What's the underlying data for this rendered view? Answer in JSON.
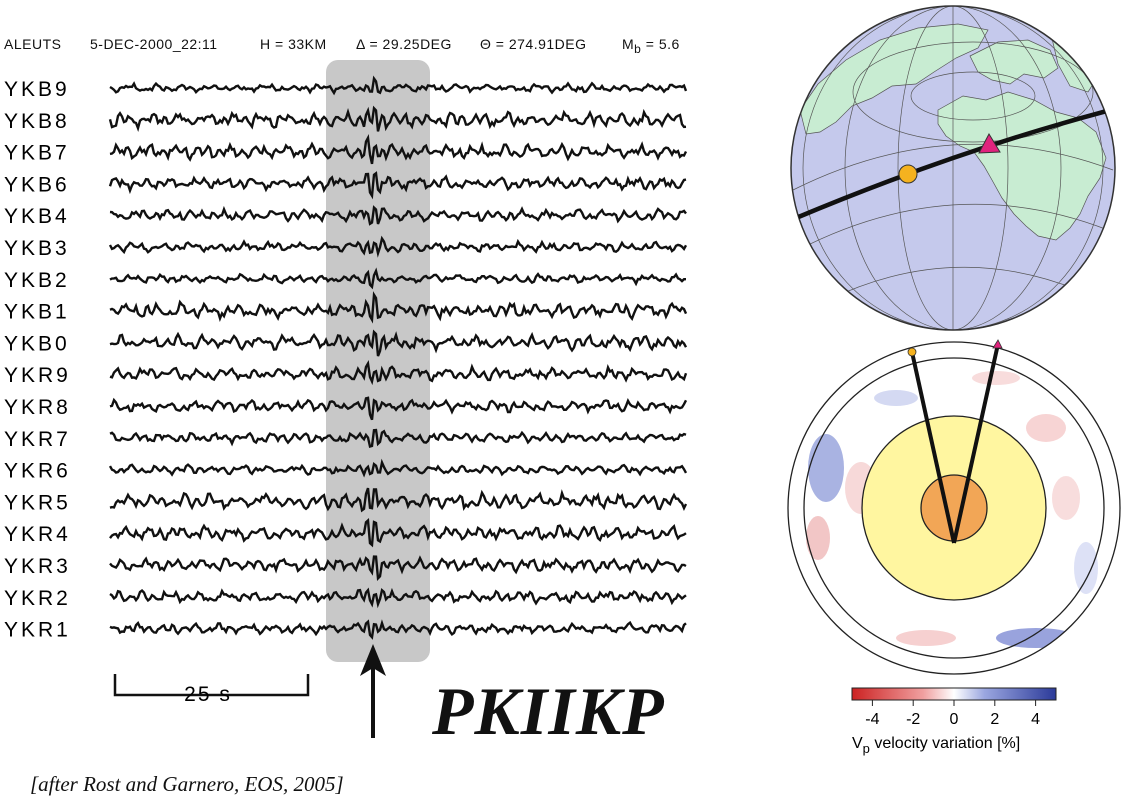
{
  "header": {
    "region": "ALEUTS",
    "date": "5-DEC-2000_22:11",
    "depth": "H = 33KM",
    "distance": "Δ = 29.25DEG",
    "azimuth": "Θ = 274.91DEG",
    "magnitude_label": "M",
    "magnitude_sub": "b",
    "magnitude_value": "= 5.6"
  },
  "stations": [
    "YKB9",
    "YKB8",
    "YKB7",
    "YKB6",
    "YKB4",
    "YKB3",
    "YKB2",
    "YKB1",
    "YKB0",
    "YKR9",
    "YKR8",
    "YKR7",
    "YKR6",
    "YKR5",
    "YKR4",
    "YKR3",
    "YKR2",
    "YKR1"
  ],
  "scale_bar_label": "25 s",
  "phase_label": "PKIIKP",
  "citation": "[after Rost and Garnero, EOS, 2005]",
  "colorbar": {
    "ticks": [
      "-4",
      "-2",
      "0",
      "2",
      "4"
    ],
    "label_main": "V",
    "label_sub": "p",
    "label_rest": " velocity variation [%]"
  },
  "colors": {
    "trace": "#111111",
    "window": "#c8c8c8",
    "ocean": "#c5c9ec",
    "land": "#c8ecd2",
    "event": "#f5b21f",
    "station": "#e0237d",
    "inner_core": "#f2a656",
    "outer_core": "#fff6a0",
    "slow": "#cc2222",
    "fast": "#2b3a99"
  }
}
